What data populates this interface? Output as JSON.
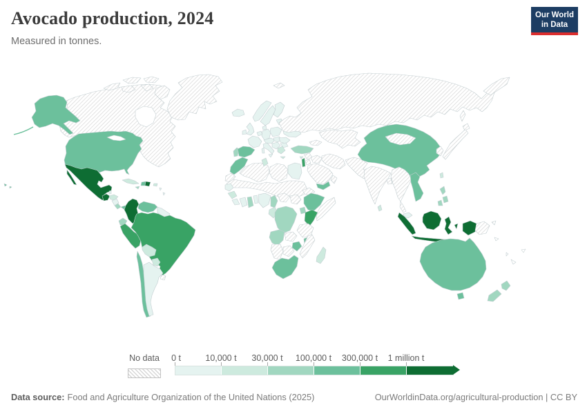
{
  "header": {
    "title": "Avocado production, 2024",
    "subtitle": "Measured in tonnes.",
    "logo": {
      "line1": "Our World",
      "line2": "in Data",
      "bg_color": "#1d3d63",
      "accent_color": "#dc2e2e"
    }
  },
  "footer": {
    "source_label": "Data source:",
    "source_text": "Food and Agriculture Organization of the United Nations (2025)",
    "right_text": "OurWorldinData.org/agricultural-production | CC BY"
  },
  "chart_data": {
    "type": "choropleth-map",
    "title": "Avocado production, 2024",
    "unit": "tonnes",
    "legend": {
      "no_data_label": "No data",
      "tick_labels": [
        "0 t",
        "10,000 t",
        "30,000 t",
        "100,000 t",
        "300,000 t",
        "1 million t"
      ],
      "bins": [
        {
          "id": "b1",
          "range": "0 – 10,000 t",
          "color": "#e5f3f0"
        },
        {
          "id": "b2",
          "range": "10,000 – 30,000 t",
          "color": "#cdeade"
        },
        {
          "id": "b3",
          "range": "30,000 – 100,000 t",
          "color": "#a1d7c0"
        },
        {
          "id": "b4",
          "range": "100,000 – 300,000 t",
          "color": "#6cc09c"
        },
        {
          "id": "b5",
          "range": "300,000 t – 1 million t",
          "color": "#39a365"
        },
        {
          "id": "b6",
          "range": "1 million t +",
          "color": "#0e6d33"
        }
      ],
      "no_data_style": "diagonal-hatch"
    },
    "countries": {
      "united-states": "b4",
      "canada": "nodata",
      "greenland": "nodata",
      "mexico": "b6",
      "guatemala": "b6",
      "belize": "b1",
      "honduras": "b2",
      "nicaragua": "b1",
      "costa-rica": "b3",
      "panama": "b4",
      "cuba": "b2",
      "jamaica": "b3",
      "haiti": "b4",
      "dominican-republic": "b6",
      "puerto-rico": "b2",
      "lesser-antilles": "b1",
      "colombia": "b6",
      "venezuela": "b4",
      "guianas": "b1",
      "ecuador": "b3",
      "peru": "b5",
      "brazil": "b5",
      "bolivia": "b2",
      "paraguay": "b2",
      "chile": "b4",
      "argentina": "b1",
      "uruguay": "nodata",
      "iceland": "b1",
      "united-kingdom": "b1",
      "ireland": "b1",
      "norway": "b1",
      "sweden": "b1",
      "finland": "b1",
      "denmark": "b1",
      "baltics": "b1",
      "france": "b1",
      "benelux": "b1",
      "germany": "b1",
      "poland": "b1",
      "central-europe": "b1",
      "hungary": "b1",
      "belarus": "b1",
      "ukraine": "b1",
      "romania": "b1",
      "balkans": "b1",
      "bulgaria": "b1",
      "greece": "b2",
      "italy": "b1",
      "portugal": "b3",
      "spain": "b4",
      "turkey": "b3",
      "cyprus": "b2",
      "syria": "nodata",
      "israel": "b5",
      "jordan": "nodata",
      "iraq": "nodata",
      "iran": "nodata",
      "saudi-arabia": "nodata",
      "yemen": "b4",
      "oman": "nodata",
      "caucasus": "nodata",
      "russia": "nodata",
      "svalbard": "nodata",
      "kazakhstan": "nodata",
      "afghanistan-pakistan": "nodata",
      "india": "nodata",
      "bangladesh": "nodata",
      "sri-lanka": "b2",
      "china": "b4",
      "mongolia": "nodata",
      "korea": "nodata",
      "japan": "nodata",
      "sakhalin": "nodata",
      "mainland-se-asia": "nodata",
      "vietnam": "b4",
      "malaysia": "b1",
      "philippines": "b3",
      "taiwan": "b2",
      "indonesia": "b6",
      "papua-new-guinea": "nodata",
      "australia": "b4",
      "new-zealand": "b3",
      "pacific-islands": "outline",
      "morocco": "b4",
      "western-sahara": "nodata",
      "algeria": "nodata",
      "tunisia": "b2",
      "libya": "nodata",
      "egypt": "b1",
      "sahel": "nodata",
      "senegal": "b1",
      "guinea": "b2",
      "liberia": "b1",
      "ivory-coast": "b1",
      "ghana": "b3",
      "togo-benin": "b1",
      "nigeria": "b1",
      "cameroon": "b3",
      "central-african-republic": "nodata",
      "south-sudan": "nodata",
      "eritrea": "nodata",
      "ethiopia": "b4",
      "somalia": "nodata",
      "kenya": "b5",
      "uganda": "b3",
      "congo-gabon": "b2",
      "democratic-republic-of-congo": "b3",
      "tanzania": "nodata",
      "angola": "b3",
      "zambia": "nodata",
      "malawi": "b4",
      "mozambique": "nodata",
      "zimbabwe": "b4",
      "botswana": "nodata",
      "namibia": "nodata",
      "south-africa": "b4",
      "madagascar": "b2"
    }
  }
}
